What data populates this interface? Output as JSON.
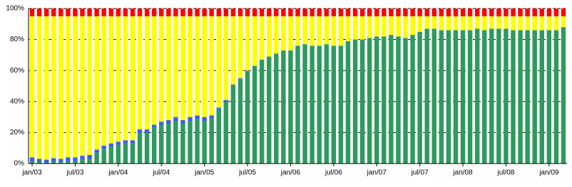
{
  "chart_data": {
    "type": "stacked_bar",
    "categories": [
      "jan/03",
      null,
      null,
      null,
      null,
      null,
      "jul/03",
      null,
      null,
      null,
      null,
      null,
      "jan/04",
      null,
      null,
      null,
      null,
      null,
      "jul/04",
      null,
      null,
      null,
      null,
      null,
      "jan/05",
      null,
      null,
      null,
      null,
      null,
      "jul/05",
      null,
      null,
      null,
      null,
      null,
      "jan/06",
      null,
      null,
      null,
      null,
      null,
      "jul/06",
      null,
      null,
      null,
      null,
      null,
      "jan/07",
      null,
      null,
      null,
      null,
      null,
      "jul/07",
      null,
      null,
      null,
      null,
      null,
      "jan/08",
      null,
      null,
      null,
      null,
      null,
      "jul/08",
      null,
      null,
      null,
      null,
      null,
      "jan/09",
      null,
      null
    ],
    "series": [
      {
        "color": "#2e9a5e",
        "values": [
          1,
          1,
          0.5,
          1,
          1,
          1.5,
          1.5,
          2.5,
          3,
          7,
          9.5,
          11,
          12,
          13,
          13,
          20,
          20,
          23,
          25,
          25.5,
          27.5,
          25.5,
          27.5,
          28.5,
          27.5,
          29,
          35,
          40,
          50.5,
          54.5,
          59.5,
          63,
          67,
          69,
          71,
          73,
          73,
          76,
          77,
          76,
          76,
          77,
          76,
          76,
          79,
          80,
          80,
          81,
          82,
          82,
          83,
          82,
          81,
          83,
          85,
          87,
          87,
          86,
          86,
          86,
          86,
          86,
          87,
          86,
          87,
          87,
          87,
          86,
          86,
          86,
          86,
          86,
          86,
          86,
          88
        ]
      },
      {
        "color": "#3b5fe0",
        "values": [
          3,
          2,
          2,
          2.5,
          2,
          2.5,
          2.5,
          2.5,
          2.5,
          2,
          2,
          2,
          2,
          2,
          2,
          2,
          2,
          2,
          2,
          2.5,
          2.5,
          2.5,
          2.5,
          2.5,
          2.5,
          2,
          1,
          1,
          0.5,
          0.5,
          0.5,
          0,
          0,
          0,
          0,
          0,
          0,
          0,
          0,
          0,
          0,
          0,
          0,
          0,
          0,
          0,
          0,
          0,
          0,
          0,
          0,
          0,
          0,
          0,
          0,
          0,
          0,
          0,
          0,
          0,
          0,
          0,
          0,
          0,
          0,
          0,
          0,
          0,
          0,
          0,
          0,
          0,
          0,
          0,
          0
        ]
      },
      {
        "color": "#ffff00",
        "values": [
          91,
          92,
          92.5,
          91.5,
          92,
          91,
          91,
          90,
          89.5,
          86,
          83.5,
          82,
          81,
          80,
          80,
          73,
          73,
          70,
          68,
          67,
          65,
          67,
          65,
          64,
          65,
          64,
          59,
          54,
          44,
          40,
          35,
          32,
          28,
          26,
          24,
          22,
          22,
          19,
          18,
          19,
          19,
          18,
          19,
          19,
          16,
          15,
          15,
          14,
          13,
          13,
          12,
          13,
          14,
          12,
          10,
          8,
          8,
          9,
          9,
          9,
          9,
          9,
          8,
          9,
          8,
          8,
          8,
          9,
          9,
          9,
          9,
          9,
          9,
          9,
          7
        ]
      },
      {
        "color": "#ff0000",
        "values": [
          5,
          5,
          5,
          5,
          5,
          5,
          5,
          5,
          5,
          5,
          5,
          5,
          5,
          5,
          5,
          5,
          5,
          5,
          5,
          5,
          5,
          5,
          5,
          5,
          5,
          5,
          5,
          5,
          5,
          5,
          5,
          5,
          5,
          5,
          5,
          5,
          5,
          5,
          5,
          5,
          5,
          5,
          5,
          5,
          5,
          5,
          5,
          5,
          5,
          5,
          5,
          5,
          5,
          5,
          5,
          5,
          5,
          5,
          5,
          5,
          5,
          5,
          5,
          5,
          5,
          5,
          5,
          5,
          5,
          5,
          5,
          5,
          5,
          5,
          5
        ]
      }
    ],
    "ylim": [
      0,
      100
    ],
    "yticks": [
      {
        "value": 0,
        "label": "0%"
      },
      {
        "value": 20,
        "label": "20%"
      },
      {
        "value": 40,
        "label": "40%"
      },
      {
        "value": 60,
        "label": "60%"
      },
      {
        "value": 80,
        "label": "80%"
      },
      {
        "value": 100,
        "label": "100%"
      }
    ],
    "grid": true
  }
}
